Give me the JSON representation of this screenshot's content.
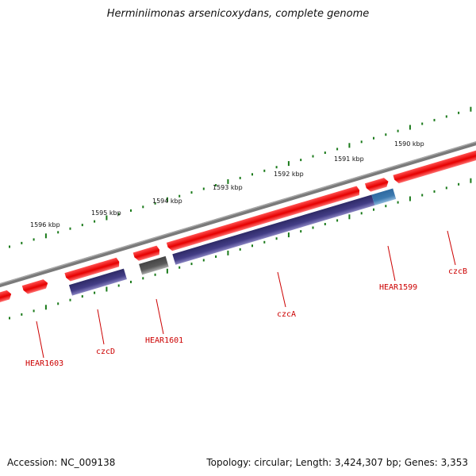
{
  "title": "Herminiimonas arsenicoxydans, complete genome",
  "footer": {
    "accession": "Accession: NC_009138",
    "topology": "Topology: circular; Length: 3,424,307 bp; Genes: 3,353"
  },
  "colors": {
    "backbone": "#7a7a7a",
    "forward_gene": "#e60000",
    "forward_gene_light": "#ff6060",
    "cds_purple": "#3f3a80",
    "cds_purple_light": "#7e78b8",
    "cds_gray": "#5a5a5a",
    "cds_blue": "#3d7ab0",
    "tick_green": "#1a7a1a",
    "label_red": "#cc0000"
  },
  "kbp_markers": [
    "1596 kbp",
    "1595 kbp",
    "1594 kbp",
    "1593 kbp",
    "1592 kbp",
    "1591 kbp",
    "1590 kbp"
  ],
  "gene_labels": [
    "HEAR1603",
    "czcD",
    "HEAR1601",
    "czcA",
    "HEAR1599",
    "czcB"
  ]
}
